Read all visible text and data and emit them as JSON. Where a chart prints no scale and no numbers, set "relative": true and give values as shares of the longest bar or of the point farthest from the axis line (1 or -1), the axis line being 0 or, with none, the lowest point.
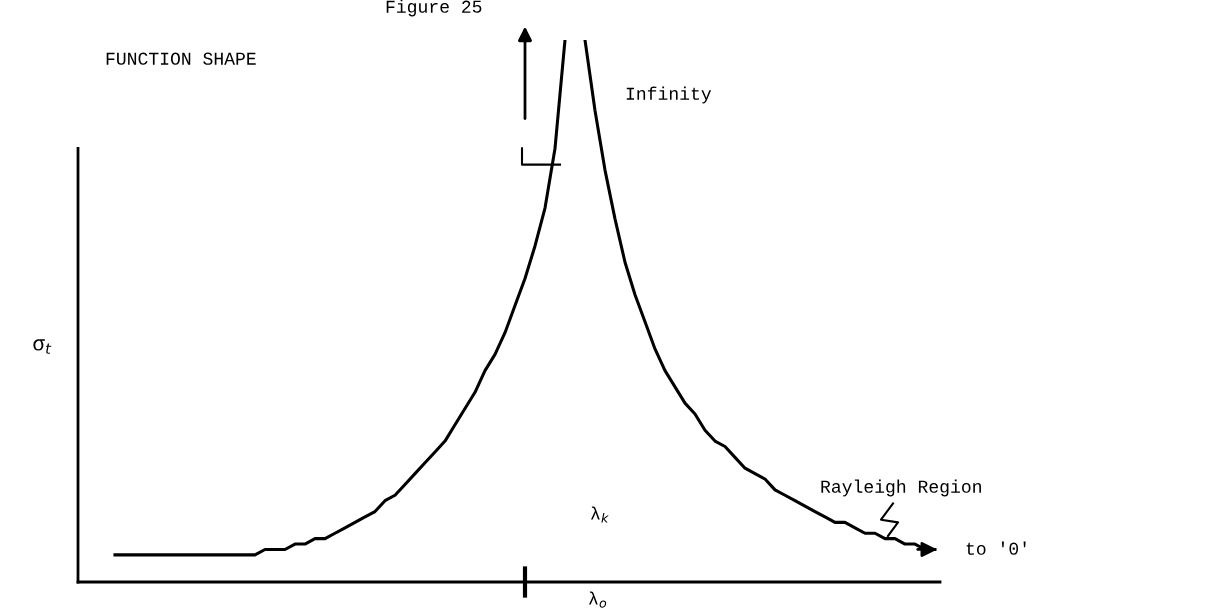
{
  "chart_data": {
    "type": "line",
    "relative": true,
    "title": "FUNCTION SHAPE",
    "ylabel": "σ$_{t}$",
    "categories": [
      null,
      null,
      null,
      null,
      null,
      null,
      null,
      null,
      null,
      null,
      null,
      null,
      null,
      null,
      null,
      null,
      null,
      null,
      null,
      null,
      null,
      null,
      null,
      null,
      null,
      null,
      null,
      null,
      null,
      null,
      null,
      null,
      null,
      null,
      null,
      null,
      null,
      null,
      null,
      null,
      null,
      null,
      null,
      null,
      null,
      null,
      null,
      null,
      null,
      null,
      null,
      null,
      null,
      null,
      null,
      null,
      null,
      null,
      null,
      null,
      null,
      null,
      null,
      null,
      null,
      null,
      null,
      null,
      null,
      null,
      null,
      null,
      null,
      null,
      null,
      null,
      null,
      null,
      null,
      null,
      null,
      null,
      null
    ],
    "series": [
      {
        "color": "#000000",
        "values": [
          0.05,
          0.05,
          0.05,
          0.05,
          0.05,
          0.05,
          0.05,
          0.05,
          0.05,
          0.05,
          0.05,
          0.05,
          0.05,
          0.05,
          0.05,
          0.06,
          0.06,
          0.06,
          0.07,
          0.07,
          0.08,
          0.08,
          0.09,
          0.1,
          0.11,
          0.12,
          0.13,
          0.15,
          0.16,
          0.18,
          0.2,
          0.22,
          0.24,
          0.26,
          0.29,
          0.32,
          0.35,
          0.39,
          0.42,
          0.46,
          0.51,
          0.56,
          0.62,
          0.69,
          0.8,
          1,
          null,
          null,
          null,
          null,
          null,
          null,
          null,
          null,
          null,
          null,
          null,
          null,
          null,
          null,
          null,
          null,
          null,
          null,
          null,
          null,
          null,
          null,
          null,
          null,
          null,
          null,
          null,
          null,
          null,
          null,
          null,
          null,
          null,
          null,
          null,
          null,
          null
        ]
      },
      {
        "color": "#000000",
        "values": [
          null,
          null,
          null,
          null,
          null,
          null,
          null,
          null,
          null,
          null,
          null,
          null,
          null,
          null,
          null,
          null,
          null,
          null,
          null,
          null,
          null,
          null,
          null,
          null,
          null,
          null,
          null,
          null,
          null,
          null,
          null,
          null,
          null,
          null,
          null,
          null,
          null,
          null,
          null,
          null,
          null,
          null,
          null,
          null,
          null,
          null,
          null,
          1,
          0.87,
          0.76,
          0.67,
          0.59,
          0.53,
          0.48,
          0.43,
          0.39,
          0.36,
          0.33,
          0.31,
          0.28,
          0.26,
          0.25,
          0.23,
          0.21,
          0.2,
          0.19,
          0.17,
          0.16,
          0.15,
          0.14,
          0.13,
          0.12,
          0.11,
          0.11,
          0.1,
          0.09,
          0.09,
          0.08,
          0.08,
          0.07,
          0.07,
          0.06,
          0.06
        ]
      }
    ],
    "annotations": [
      "Figure 25",
      "Infinity",
      "Rayleigh Region",
      "to '0'",
      "λ$_{k}$",
      "λ$_{o}$"
    ],
    "line_style": "solid",
    "marker": "none",
    "legend": false
  }
}
